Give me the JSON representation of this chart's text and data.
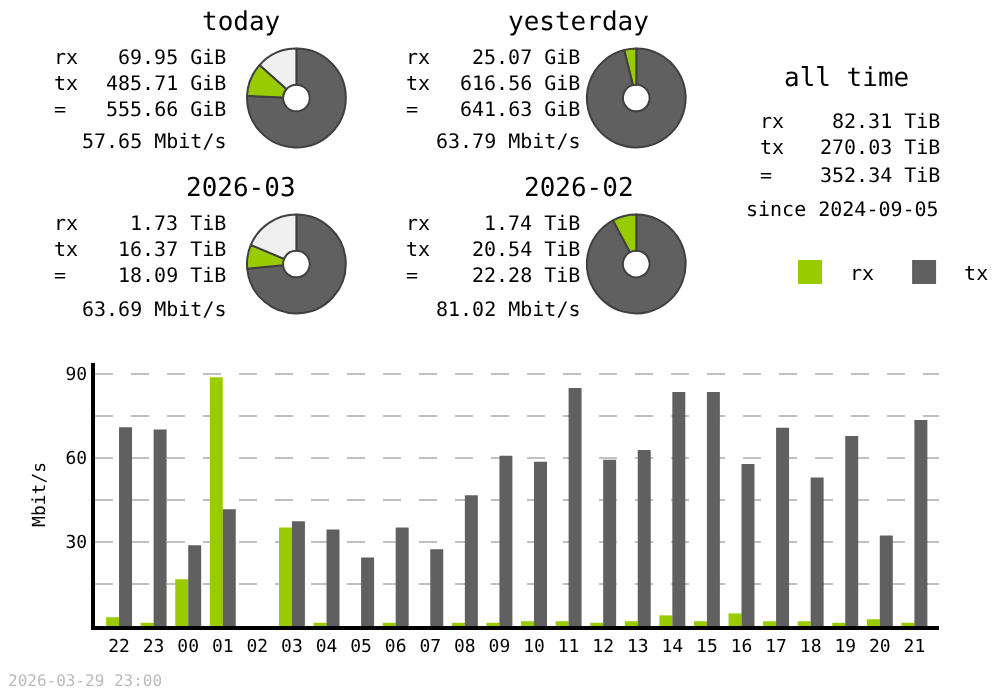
{
  "chart_data": [
    {
      "type": "donut",
      "title": "today",
      "categories": [
        null,
        null,
        null
      ],
      "values": [
        75.7,
        10.9,
        13.4
      ],
      "colors": [
        "#606060",
        "#99cc00",
        "#f0f0f0"
      ],
      "annotations": [
        "rx",
        "69.95 GiB",
        "tx",
        "485.71 GiB",
        "=",
        "555.66 GiB",
        "57.65 Mbit/s"
      ]
    },
    {
      "type": "donut",
      "title": "yesterday",
      "categories": [
        null,
        null
      ],
      "values": [
        96.1,
        3.9
      ],
      "colors": [
        "#606060",
        "#99cc00"
      ],
      "annotations": [
        "rx",
        "25.07 GiB",
        "tx",
        "616.56 GiB",
        "=",
        "641.63 GiB",
        "63.79 Mbit/s"
      ]
    },
    {
      "type": "donut",
      "title": "2026-03",
      "categories": [
        null,
        null,
        null
      ],
      "values": [
        73.5,
        7.8,
        18.7
      ],
      "colors": [
        "#606060",
        "#99cc00",
        "#f0f0f0"
      ],
      "annotations": [
        "rx",
        "1.73 TiB",
        "tx",
        "16.37 TiB",
        "=",
        "18.09 TiB",
        "63.69 Mbit/s"
      ]
    },
    {
      "type": "donut",
      "title": "2026-02",
      "categories": [
        null,
        null
      ],
      "values": [
        92.2,
        7.8
      ],
      "colors": [
        "#606060",
        "#99cc00"
      ],
      "annotations": [
        "rx",
        "1.74 TiB",
        "tx",
        "20.54 TiB",
        "=",
        "22.28 TiB",
        "81.02 Mbit/s"
      ]
    },
    {
      "type": "other",
      "title": "all time",
      "annotations": [
        "rx",
        "82.31 TiB",
        "tx",
        "270.03 TiB",
        "=",
        "352.34 TiB",
        "since 2024-09-05"
      ]
    },
    {
      "type": "bar",
      "ylabel": "Mbit/s",
      "legend": "top right",
      "grid": "y",
      "categories": [
        "22",
        "23",
        "00",
        "01",
        "02",
        "03",
        "04",
        "05",
        "06",
        "07",
        "08",
        "09",
        "10",
        "11",
        "12",
        "13",
        "14",
        "15",
        "16",
        "17",
        "18",
        "19",
        "20",
        "21"
      ],
      "series": [
        {
          "name": "rx",
          "color": "#99cc00",
          "values": [
            3.1,
            0.8,
            16.7,
            88.8,
            null,
            35.2,
            0.8,
            0,
            0.8,
            0,
            0.8,
            0.8,
            1.7,
            1.7,
            1,
            1.7,
            3.8,
            1.7,
            4.5,
            1.7,
            1.7,
            1,
            2.4,
            1
          ]
        },
        {
          "name": "tx",
          "color": "#606060",
          "values": [
            71,
            70.2,
            28.8,
            41.7,
            null,
            37.4,
            34.5,
            24.5,
            35.2,
            27.4,
            46.7,
            60.8,
            58.7,
            85,
            59.4,
            62.9,
            83.6,
            83.6,
            57.9,
            70.8,
            53,
            67.9,
            32.3,
            73.6
          ]
        }
      ],
      "ylim": [
        0,
        94
      ],
      "yticks": [
        {
          "value": 15,
          "label": null
        },
        30,
        {
          "value": 45,
          "label": null
        },
        60,
        {
          "value": 75,
          "label": null
        },
        90
      ],
      "annotations": [
        "2026-03-29 23:00"
      ]
    }
  ]
}
